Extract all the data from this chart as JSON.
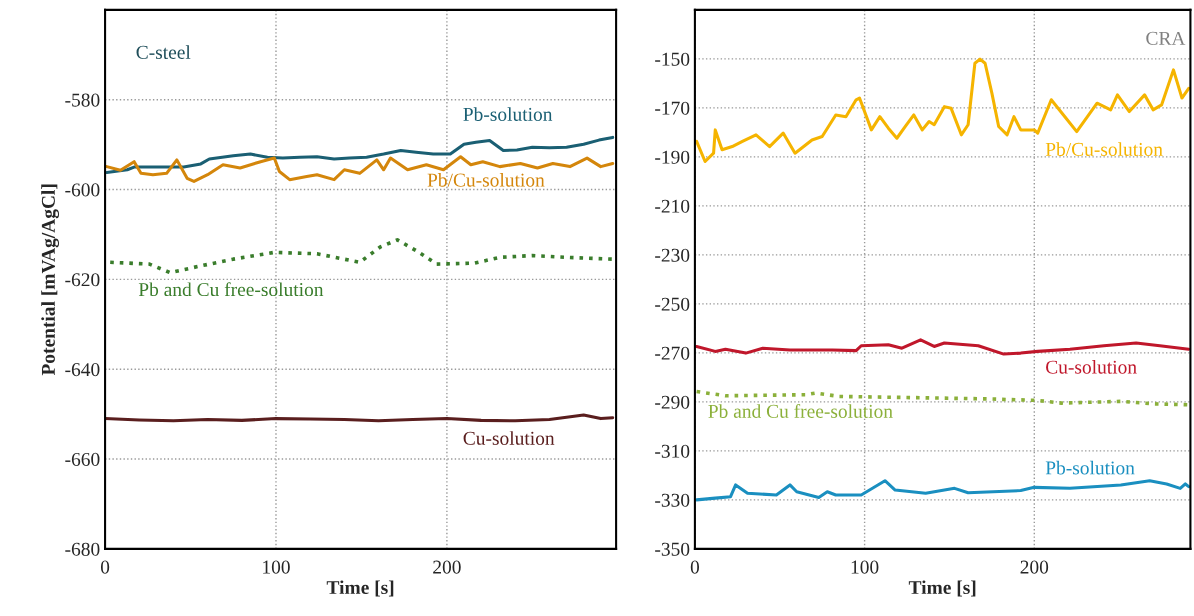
{
  "chart_data": [
    {
      "type": "line",
      "title": "C-steel",
      "xlabel": "Time [s]",
      "ylabel": "Potential [mVAg/AgCl]",
      "xlim": [
        0,
        299
      ],
      "xticks": [
        0,
        100,
        200
      ],
      "ylim": [
        -680,
        -560
      ],
      "yticks": [
        -680,
        -660,
        -640,
        -620,
        -600,
        -580
      ],
      "grid": true,
      "legend": false,
      "series": [
        {
          "name": "Pb-solution",
          "color": "#1a5f73",
          "line_style": "solid",
          "x": [
            1,
            13,
            17,
            46,
            56,
            61,
            75,
            85,
            95,
            104,
            114,
            124,
            134,
            143,
            153,
            163,
            173,
            182,
            192,
            202,
            210,
            217,
            225,
            233,
            241,
            250,
            260,
            270,
            280,
            289,
            297
          ],
          "values": [
            -596.2,
            -595.6,
            -595.0,
            -595.0,
            -594.3,
            -593.2,
            -592.5,
            -592.1,
            -592.8,
            -593.0,
            -592.8,
            -592.7,
            -593.2,
            -593.0,
            -592.8,
            -592.1,
            -591.3,
            -591.7,
            -592.1,
            -592.1,
            -589.9,
            -589.5,
            -589.1,
            -591.3,
            -591.2,
            -590.6,
            -590.7,
            -590.6,
            -589.9,
            -589.0,
            -588.4
          ]
        },
        {
          "name": "Pb/Cu-solution",
          "color": "#d4860b",
          "line_style": "solid",
          "x": [
            1,
            9,
            17,
            21,
            28,
            36,
            42,
            48,
            52,
            60,
            69,
            79,
            91,
            99,
            102,
            108,
            118,
            124,
            134,
            140,
            149,
            159,
            163,
            167,
            177,
            188,
            198,
            208,
            214,
            221,
            231,
            243,
            253,
            262,
            272,
            282,
            290,
            297
          ],
          "values": [
            -594.9,
            -595.7,
            -593.8,
            -596.4,
            -596.7,
            -596.4,
            -593.4,
            -597.5,
            -598.2,
            -596.7,
            -594.5,
            -595.2,
            -593.8,
            -593.0,
            -596.0,
            -597.8,
            -597.1,
            -596.7,
            -597.8,
            -595.6,
            -596.4,
            -593.4,
            -595.6,
            -593.0,
            -595.6,
            -594.5,
            -595.6,
            -592.7,
            -594.5,
            -593.8,
            -594.9,
            -594.2,
            -595.2,
            -594.2,
            -594.9,
            -593.0,
            -594.9,
            -594.2
          ]
        },
        {
          "name": "Pb and Cu free-solution",
          "color": "#3a7d2c",
          "line_style": "dotted",
          "x": [
            3,
            26,
            38,
            56,
            75,
            99,
            124,
            149,
            161,
            171,
            182,
            194,
            216,
            231,
            250,
            270,
            297
          ],
          "values": [
            -616.2,
            -616.6,
            -618.5,
            -617.0,
            -615.5,
            -614.0,
            -614.3,
            -616.2,
            -612.8,
            -611.2,
            -613.6,
            -616.6,
            -616.4,
            -615.1,
            -614.7,
            -615.1,
            -615.5
          ]
        },
        {
          "name": "Cu-solution",
          "color": "#5a1e1e",
          "line_style": "solid",
          "x": [
            0,
            20,
            40,
            60,
            80,
            100,
            120,
            140,
            160,
            180,
            200,
            220,
            240,
            260,
            280,
            290,
            297
          ],
          "values": [
            -651.0,
            -651.3,
            -651.5,
            -651.2,
            -651.4,
            -651.0,
            -651.1,
            -651.2,
            -651.5,
            -651.2,
            -651.0,
            -651.4,
            -651.5,
            -651.2,
            -650.2,
            -651.0,
            -650.8
          ]
        }
      ]
    },
    {
      "type": "line",
      "title": "CRA",
      "xlabel": "Time [s]",
      "xlim": [
        0,
        292
      ],
      "xticks": [
        0,
        100,
        200
      ],
      "ylim": [
        -350,
        -130
      ],
      "yticks": [
        -350,
        -330,
        -310,
        -290,
        -270,
        -250,
        -230,
        -210,
        -190,
        -170,
        -150
      ],
      "grid": true,
      "legend": false,
      "series": [
        {
          "name": "Pb/Cu-solution",
          "color": "#f5b400",
          "line_style": "solid",
          "x": [
            1,
            6,
            11,
            12,
            16,
            22,
            28,
            36,
            44,
            52,
            59,
            69,
            75,
            83,
            89,
            95,
            97,
            104,
            109,
            114,
            119,
            124,
            129,
            134,
            138,
            141,
            147,
            151,
            157,
            161,
            165,
            168,
            171,
            175,
            179,
            184,
            188,
            192,
            200,
            202,
            210,
            218,
            225,
            237,
            245,
            249,
            256,
            265,
            270,
            275,
            282,
            287,
            291
          ],
          "values": [
            -183.7,
            -191.9,
            -188.5,
            -179.0,
            -187.1,
            -185.8,
            -183.7,
            -181.0,
            -185.8,
            -180.3,
            -188.5,
            -183.1,
            -181.7,
            -172.9,
            -173.6,
            -166.7,
            -166.0,
            -179.0,
            -173.6,
            -178.3,
            -182.4,
            -177.6,
            -172.9,
            -179.0,
            -175.6,
            -176.9,
            -169.5,
            -170.2,
            -181.0,
            -176.9,
            -151.8,
            -150.1,
            -151.8,
            -164.0,
            -177.6,
            -181.0,
            -173.6,
            -179.0,
            -179.0,
            -180.3,
            -166.7,
            -173.6,
            -179.7,
            -168.1,
            -170.8,
            -164.7,
            -171.5,
            -164.7,
            -170.8,
            -168.8,
            -154.5,
            -166.0,
            -162.0
          ]
        },
        {
          "name": "Cu-solution",
          "color": "#c0172b",
          "line_style": "solid",
          "x": [
            1,
            12,
            18,
            30,
            40,
            56,
            81,
            95,
            98,
            114,
            122,
            133,
            141,
            147,
            167,
            182,
            192,
            202,
            221,
            241,
            260,
            274,
            291
          ],
          "values": [
            -267.4,
            -269.4,
            -268.5,
            -270.1,
            -268.1,
            -268.8,
            -268.8,
            -269.1,
            -267.1,
            -266.7,
            -268.1,
            -264.7,
            -267.4,
            -266.0,
            -267.1,
            -270.5,
            -270.1,
            -269.4,
            -268.5,
            -267.1,
            -266.0,
            -267.1,
            -268.5
          ]
        },
        {
          "name": "Pb and Cu free-solution",
          "color": "#8bb03a",
          "line_style": "dotted",
          "x": [
            1,
            18,
            65,
            71,
            85,
            114,
            173,
            202,
            216,
            251,
            270,
            291
          ],
          "values": [
            -285.8,
            -287.5,
            -287.1,
            -286.4,
            -287.8,
            -288.1,
            -288.8,
            -289.4,
            -290.5,
            -289.8,
            -290.8,
            -291.2
          ]
        },
        {
          "name": "Pb-solution",
          "color": "#1a8fc0",
          "line_style": "solid",
          "x": [
            1,
            12,
            21,
            24,
            31,
            48,
            56,
            60,
            73,
            78,
            83,
            98,
            112,
            118,
            136,
            153,
            161,
            192,
            200,
            221,
            251,
            268,
            278,
            286,
            289,
            291
          ],
          "values": [
            -330.0,
            -329.3,
            -328.7,
            -323.9,
            -327.3,
            -328.0,
            -323.9,
            -326.7,
            -329.0,
            -326.7,
            -328.0,
            -328.0,
            -322.2,
            -326.0,
            -327.3,
            -325.3,
            -327.1,
            -326.2,
            -324.9,
            -325.3,
            -323.9,
            -322.2,
            -323.5,
            -325.3,
            -323.5,
            -324.6
          ]
        }
      ]
    }
  ]
}
